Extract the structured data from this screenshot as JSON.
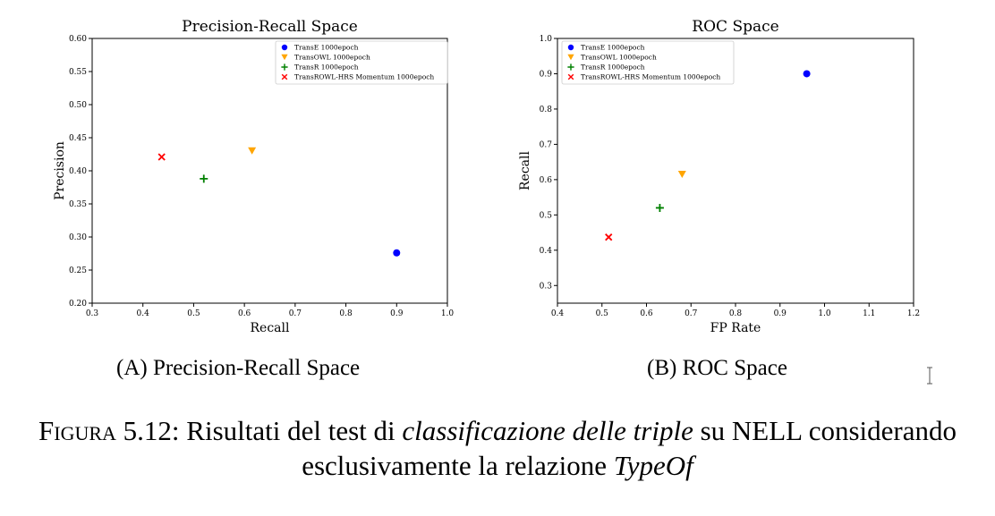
{
  "chart_data": [
    {
      "type": "scatter",
      "title": "Precision-Recall Space",
      "xlabel": "Recall",
      "ylabel": "Precision",
      "xlim": [
        0.3,
        1.0
      ],
      "ylim": [
        0.2,
        0.6
      ],
      "xticks": [
        "0.3",
        "0.4",
        "0.5",
        "0.6",
        "0.7",
        "0.8",
        "0.9",
        "1.0"
      ],
      "yticks": [
        "0.20",
        "0.25",
        "0.30",
        "0.35",
        "0.40",
        "0.45",
        "0.50",
        "0.55",
        "0.60"
      ],
      "grid": false,
      "legend_position": "top-right",
      "series": [
        {
          "name": "TransE 1000epoch",
          "color": "#0000ff",
          "marker": "circle",
          "x": [
            0.9
          ],
          "y": [
            0.276
          ]
        },
        {
          "name": "TransOWL 1000epoch",
          "color": "#ffa500",
          "marker": "triangle-down",
          "x": [
            0.615
          ],
          "y": [
            0.43
          ]
        },
        {
          "name": "TransR 1000epoch",
          "color": "#008000",
          "marker": "plus",
          "x": [
            0.52
          ],
          "y": [
            0.388
          ]
        },
        {
          "name": "TransROWL-HRS Momentum 1000epoch",
          "color": "#ff0000",
          "marker": "x",
          "x": [
            0.437
          ],
          "y": [
            0.421
          ]
        }
      ]
    },
    {
      "type": "scatter",
      "title": "ROC Space",
      "xlabel": "FP Rate",
      "ylabel": "Recall",
      "xlim": [
        0.4,
        1.2
      ],
      "ylim": [
        0.25,
        1.0
      ],
      "xticks": [
        "0.4",
        "0.5",
        "0.6",
        "0.7",
        "0.8",
        "0.9",
        "1.0",
        "1.1",
        "1.2"
      ],
      "yticks": [
        "0.3",
        "0.4",
        "0.5",
        "0.6",
        "0.7",
        "0.8",
        "0.9",
        "1.0"
      ],
      "grid": false,
      "legend_position": "top-left",
      "series": [
        {
          "name": "TransE 1000epoch",
          "color": "#0000ff",
          "marker": "circle",
          "x": [
            0.96
          ],
          "y": [
            0.9
          ]
        },
        {
          "name": "TransOWL 1000epoch",
          "color": "#ffa500",
          "marker": "triangle-down",
          "x": [
            0.68
          ],
          "y": [
            0.615
          ]
        },
        {
          "name": "TransR 1000epoch",
          "color": "#008000",
          "marker": "plus",
          "x": [
            0.63
          ],
          "y": [
            0.52
          ]
        },
        {
          "name": "TransROWL-HRS Momentum 1000epoch",
          "color": "#ff0000",
          "marker": "x",
          "x": [
            0.515
          ],
          "y": [
            0.437
          ]
        }
      ]
    }
  ],
  "subcaptions": {
    "a_label": "(A)",
    "a_text": "Precision-Recall Space",
    "b_label": "(B)",
    "b_text": "ROC Space"
  },
  "caption": {
    "label": "Figura 5.12:",
    "text1": "Risultati del test di",
    "emph1": "classificazione delle triple",
    "text2": "su NELL considerando esclusivamente la relazione",
    "emph2": "TypeOf"
  }
}
